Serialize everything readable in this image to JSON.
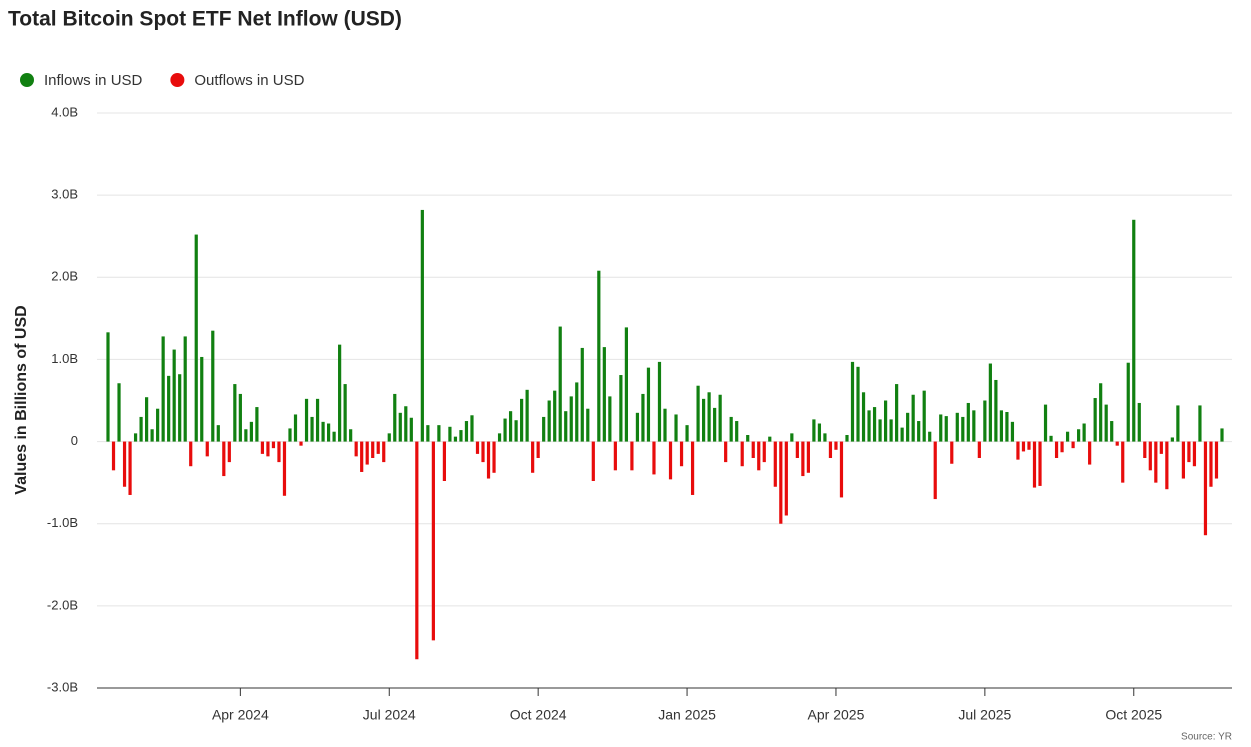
{
  "chart_data": {
    "type": "bar",
    "title": "Total Bitcoin Spot ETF Net Inflow (USD)",
    "y_label": "Values in Billions of USD",
    "source": "Source: YR",
    "legend": [
      {
        "name": "Inflows in USD",
        "color": "#118011"
      },
      {
        "name": "Outflows in USD",
        "color": "#e80c0c"
      }
    ],
    "ylim": [
      -3,
      4
    ],
    "yticks": [
      {
        "value": -3,
        "label": "-3.0B"
      },
      {
        "value": -2,
        "label": "-2.0B"
      },
      {
        "value": -1,
        "label": "-1.0B"
      },
      0,
      {
        "value": 1,
        "label": "1.0B"
      },
      {
        "value": 2,
        "label": "2.0B"
      },
      {
        "value": 3,
        "label": "3.0B"
      },
      {
        "value": 4,
        "label": "4.0B"
      }
    ],
    "grid": true,
    "categories": [
      null,
      null,
      null,
      null,
      null,
      null,
      null,
      null,
      null,
      null,
      null,
      null,
      null,
      null,
      null,
      null,
      null,
      null,
      null,
      null,
      null,
      null,
      null,
      null,
      "Apr 2024",
      null,
      null,
      null,
      null,
      null,
      null,
      null,
      null,
      null,
      null,
      null,
      null,
      null,
      null,
      null,
      null,
      null,
      null,
      null,
      null,
      null,
      null,
      null,
      null,
      null,
      null,
      "Jul 2024",
      null,
      null,
      null,
      null,
      null,
      null,
      null,
      null,
      null,
      null,
      null,
      null,
      null,
      null,
      null,
      null,
      null,
      null,
      null,
      null,
      null,
      null,
      null,
      null,
      null,
      null,
      "Oct 2024",
      null,
      null,
      null,
      null,
      null,
      null,
      null,
      null,
      null,
      null,
      null,
      null,
      null,
      null,
      null,
      null,
      null,
      null,
      null,
      null,
      null,
      null,
      null,
      null,
      null,
      null,
      "Jan 2025",
      null,
      null,
      null,
      null,
      null,
      null,
      null,
      null,
      null,
      null,
      null,
      null,
      null,
      null,
      null,
      null,
      null,
      null,
      null,
      null,
      null,
      null,
      null,
      null,
      null,
      null,
      "Apr 2025",
      null,
      null,
      null,
      null,
      null,
      null,
      null,
      null,
      null,
      null,
      null,
      null,
      null,
      null,
      null,
      null,
      null,
      null,
      null,
      null,
      null,
      null,
      null,
      null,
      null,
      null,
      "Jul 2025",
      null,
      null,
      null,
      null,
      null,
      null,
      null,
      null,
      null,
      null,
      null,
      null,
      null,
      null,
      null,
      null,
      null,
      null,
      null,
      null,
      null,
      null,
      null,
      null,
      null,
      null,
      "Oct 2025",
      null,
      null,
      null,
      null,
      null,
      null,
      null,
      null,
      null,
      null,
      null,
      null,
      null,
      null,
      null,
      null
    ],
    "values": [
      1.33,
      -0.35,
      0.71,
      -0.55,
      -0.65,
      0.1,
      0.3,
      0.54,
      0.15,
      0.4,
      1.28,
      0.8,
      1.12,
      0.82,
      1.28,
      -0.3,
      2.52,
      1.03,
      -0.18,
      1.35,
      0.2,
      -0.42,
      -0.25,
      0.7,
      0.58,
      0.15,
      0.24,
      0.42,
      -0.15,
      -0.18,
      -0.08,
      -0.25,
      -0.66,
      0.16,
      0.33,
      -0.05,
      0.52,
      0.3,
      0.52,
      0.24,
      0.22,
      0.12,
      1.18,
      0.7,
      0.15,
      -0.18,
      -0.37,
      -0.28,
      -0.2,
      -0.15,
      -0.25,
      0.1,
      0.58,
      0.35,
      0.43,
      0.29,
      -2.65,
      2.82,
      0.2,
      -2.42,
      0.2,
      -0.48,
      0.18,
      0.06,
      0.14,
      0.25,
      0.32,
      -0.15,
      -0.25,
      -0.45,
      -0.38,
      0.1,
      0.28,
      0.37,
      0.26,
      0.52,
      0.63,
      -0.38,
      -0.2,
      0.3,
      0.5,
      0.62,
      1.4,
      0.37,
      0.55,
      0.72,
      1.14,
      0.4,
      -0.48,
      2.08,
      1.15,
      0.55,
      -0.35,
      0.81,
      1.39,
      -0.35,
      0.35,
      0.58,
      0.9,
      -0.4,
      0.97,
      0.4,
      -0.46,
      0.33,
      -0.3,
      0.2,
      -0.65,
      0.68,
      0.52,
      0.6,
      0.41,
      0.57,
      -0.25,
      0.3,
      0.25,
      -0.3,
      0.08,
      -0.2,
      -0.35,
      -0.25,
      0.06,
      -0.55,
      -1.0,
      -0.9,
      0.1,
      -0.2,
      -0.42,
      -0.38,
      0.27,
      0.22,
      0.1,
      -0.2,
      -0.1,
      -0.68,
      0.08,
      0.97,
      0.91,
      0.6,
      0.38,
      0.42,
      0.27,
      0.5,
      0.27,
      0.7,
      0.17,
      0.35,
      0.57,
      0.25,
      0.62,
      0.12,
      -0.7,
      0.33,
      0.31,
      -0.27,
      0.35,
      0.3,
      0.47,
      0.38,
      -0.2,
      0.5,
      0.95,
      0.75,
      0.38,
      0.36,
      0.24,
      -0.22,
      -0.12,
      -0.1,
      -0.56,
      -0.54,
      0.45,
      0.07,
      -0.2,
      -0.13,
      0.12,
      -0.08,
      0.15,
      0.22,
      -0.28,
      0.53,
      0.71,
      0.45,
      0.25,
      -0.05,
      -0.5,
      0.96,
      2.7,
      0.47,
      -0.2,
      -0.35,
      -0.5,
      -0.15,
      -0.58,
      0.05,
      0.44,
      -0.45,
      -0.25,
      -0.3,
      0.44,
      -1.14,
      -0.55,
      -0.45,
      0.16
    ]
  }
}
